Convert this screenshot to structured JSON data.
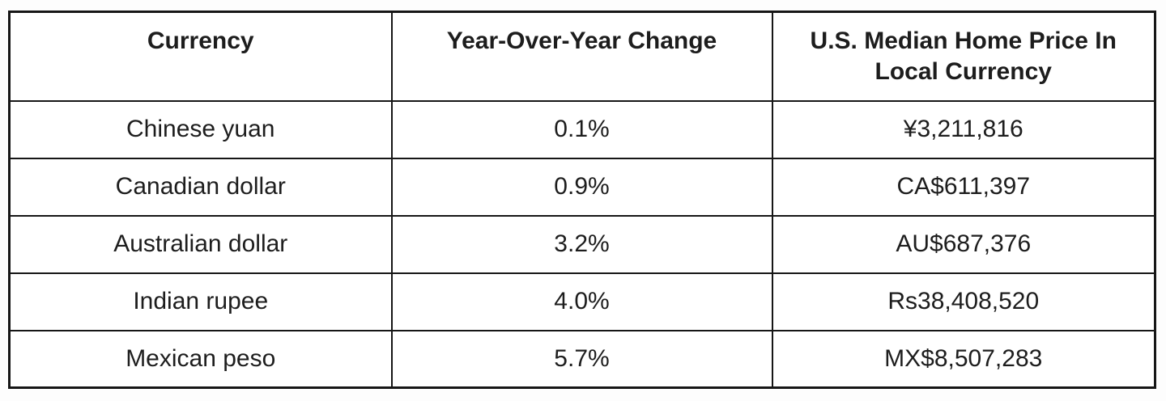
{
  "page": {
    "background": "#fdfdfd"
  },
  "table": {
    "border_color": "#161616",
    "text_color": "#1d1d1d",
    "cell_background": "#ffffff",
    "columns": [
      {
        "key": "currency",
        "label": "Currency"
      },
      {
        "key": "yoy_change",
        "label": "Year-Over-Year Change"
      },
      {
        "key": "median_price",
        "label": "U.S. Median Home Price In Local Currency"
      }
    ],
    "rows": [
      {
        "currency": "Chinese yuan",
        "yoy_change": "0.1%",
        "median_price": "¥3,211,816"
      },
      {
        "currency": "Canadian dollar",
        "yoy_change": "0.9%",
        "median_price": "CA$611,397"
      },
      {
        "currency": "Australian dollar",
        "yoy_change": "3.2%",
        "median_price": "AU$687,376"
      },
      {
        "currency": "Indian rupee",
        "yoy_change": "4.0%",
        "median_price": "Rs38,408,520"
      },
      {
        "currency": "Mexican peso",
        "yoy_change": "5.7%",
        "median_price": "MX$8,507,283"
      }
    ]
  },
  "chart_data": {
    "type": "table",
    "title": "",
    "columns": [
      "Currency",
      "Year-Over-Year Change",
      "U.S. Median Home Price In Local Currency"
    ],
    "rows": [
      [
        "Chinese yuan",
        "0.1%",
        "¥3,211,816"
      ],
      [
        "Canadian dollar",
        "0.9%",
        "CA$611,397"
      ],
      [
        "Australian dollar",
        "3.2%",
        "AU$687,376"
      ],
      [
        "Indian rupee",
        "4.0%",
        "Rs38,408,520"
      ],
      [
        "Mexican peso",
        "5.7%",
        "MX$8,507,283"
      ]
    ],
    "yoy_change_values_percent": [
      0.1,
      0.9,
      3.2,
      4.0,
      5.7
    ],
    "median_price_values": [
      3211816,
      611397,
      687376,
      38408520,
      8507283
    ]
  }
}
